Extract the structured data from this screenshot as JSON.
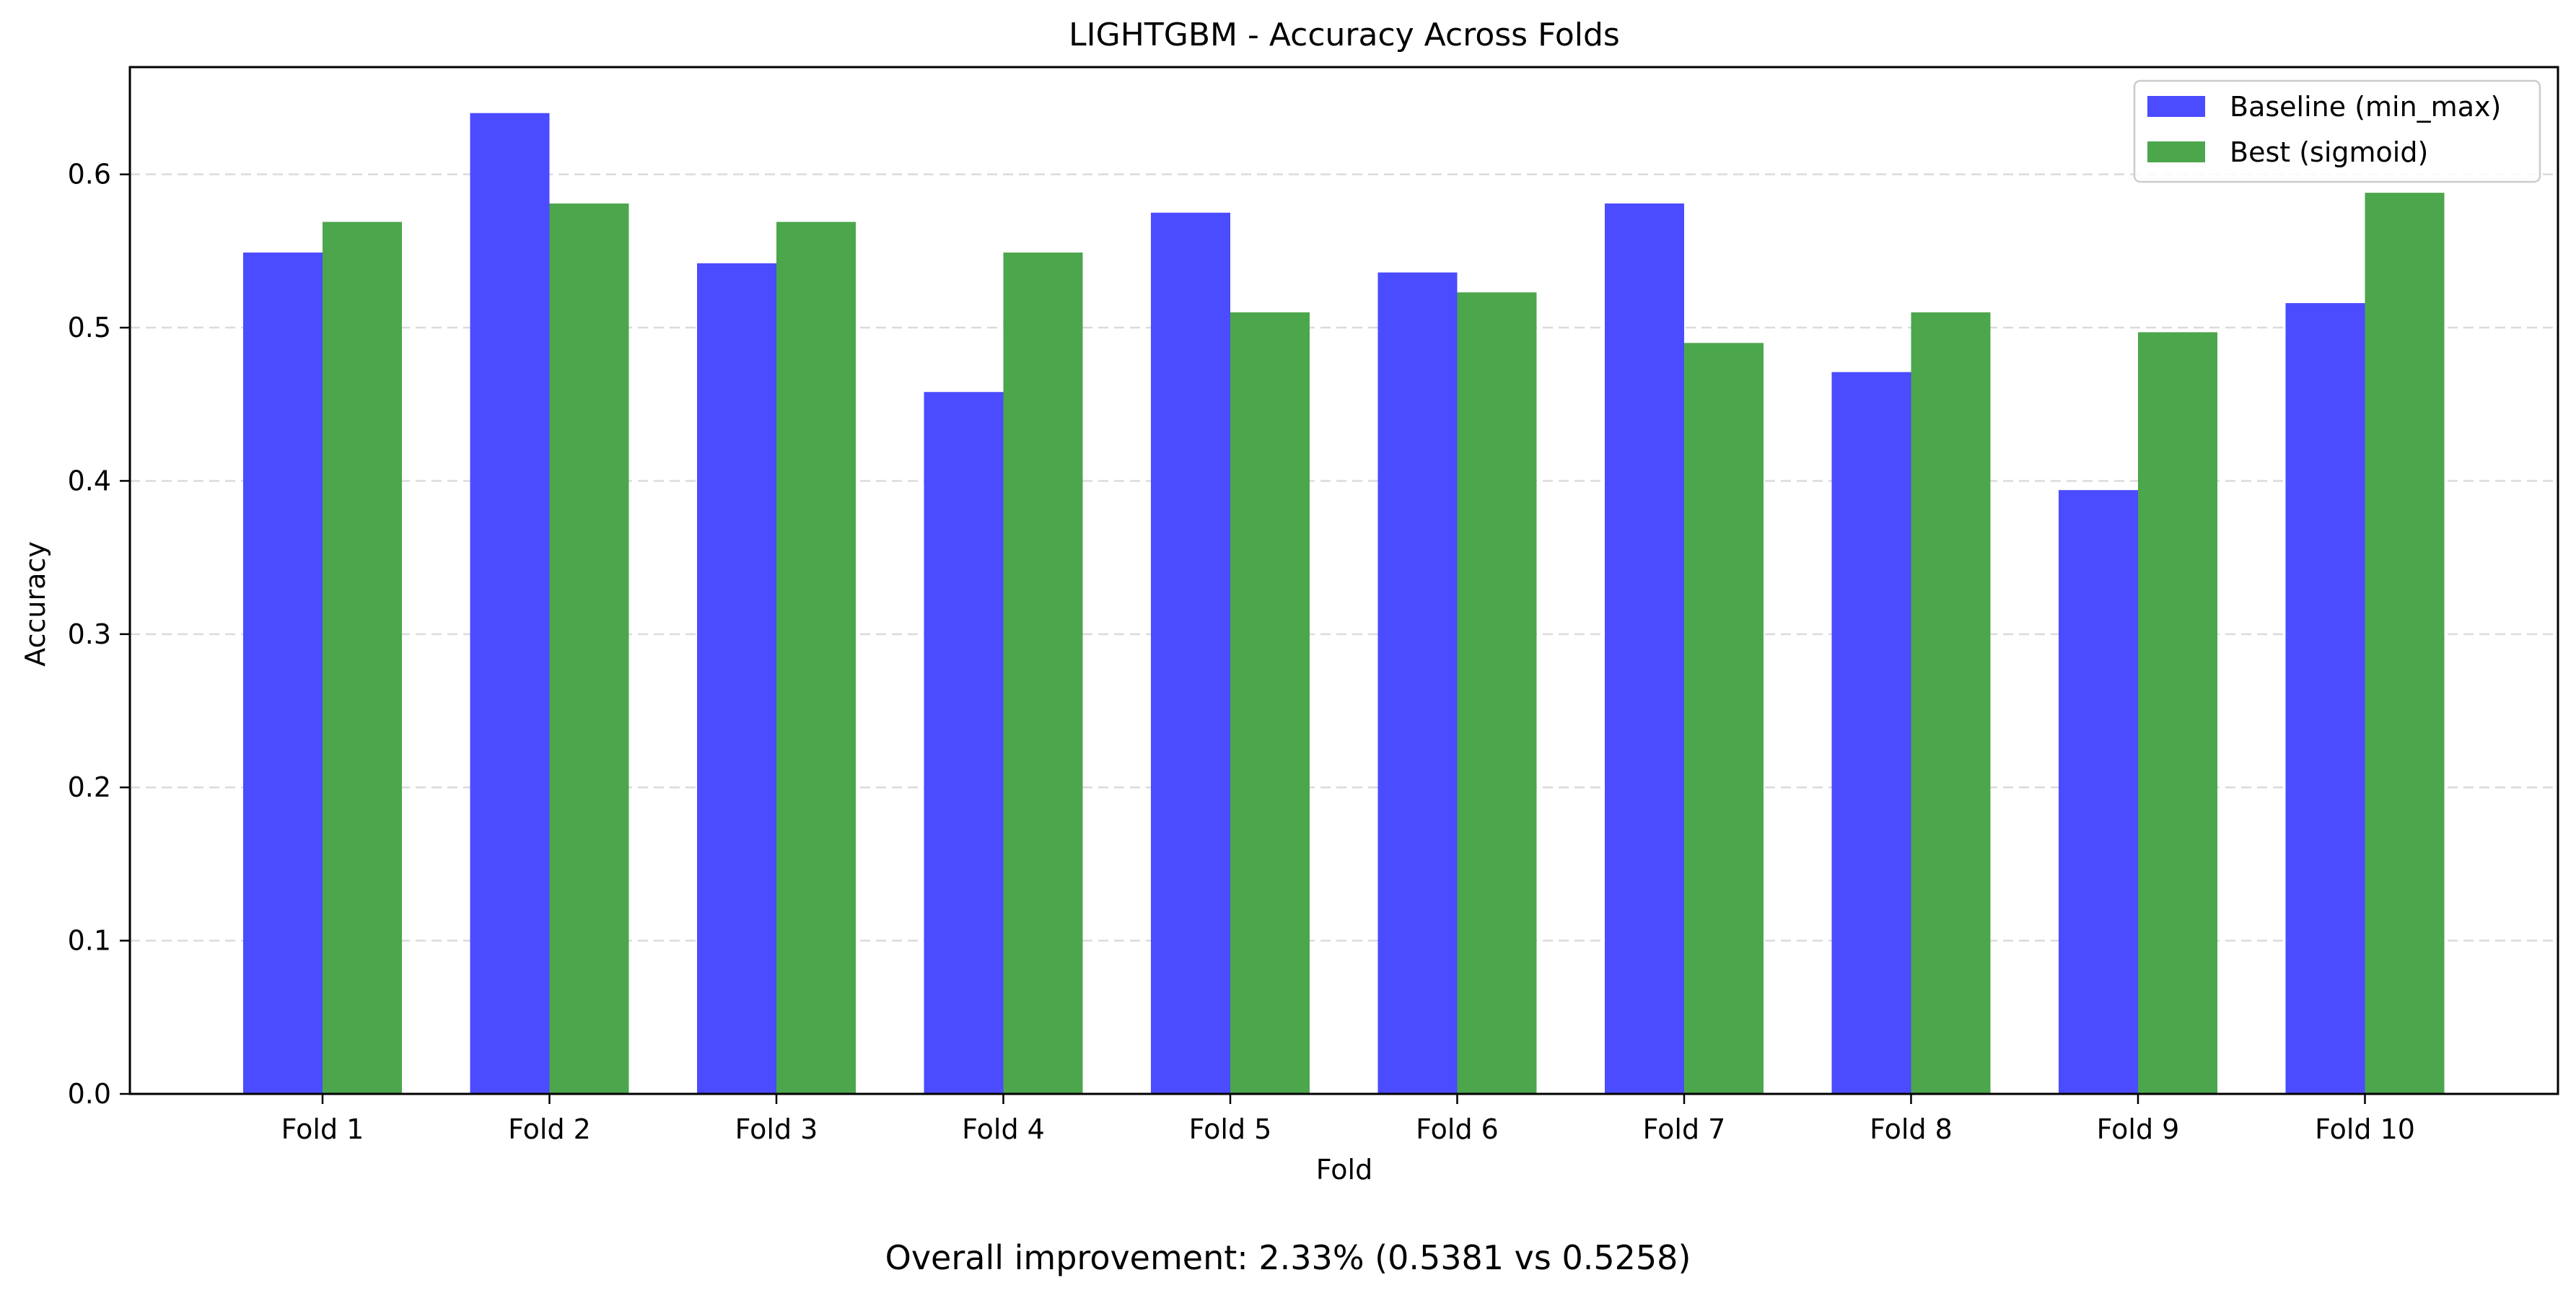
{
  "chart_data": {
    "type": "bar",
    "title": "LIGHTGBM - Accuracy Across Folds",
    "xlabel": "Fold",
    "ylabel": "Accuracy",
    "categories": [
      "Fold 1",
      "Fold 2",
      "Fold 3",
      "Fold 4",
      "Fold 5",
      "Fold 6",
      "Fold 7",
      "Fold 8",
      "Fold 9",
      "Fold 10"
    ],
    "series": [
      {
        "name": "Baseline (min_max)",
        "color": "#4b4bff",
        "values": [
          0.549,
          0.64,
          0.542,
          0.458,
          0.575,
          0.536,
          0.581,
          0.471,
          0.394,
          0.516
        ]
      },
      {
        "name": "Best (sigmoid)",
        "color": "#4ca64c",
        "values": [
          0.569,
          0.581,
          0.569,
          0.549,
          0.51,
          0.523,
          0.49,
          0.51,
          0.497,
          0.588
        ]
      }
    ],
    "ylim": [
      0,
      0.67
    ],
    "yticks": [
      0.0,
      0.1,
      0.2,
      0.3,
      0.4,
      0.5,
      0.6
    ],
    "ytick_labels": [
      "0.0",
      "0.1",
      "0.2",
      "0.3",
      "0.4",
      "0.5",
      "0.6"
    ],
    "grid": "y-axis dashed",
    "legend_position": "top-right"
  },
  "footer": {
    "summary": "Overall improvement: 2.33% (0.5381 vs 0.5258)"
  }
}
